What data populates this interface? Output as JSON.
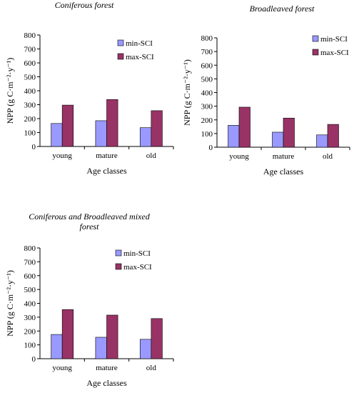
{
  "colors": {
    "min": "#9999ff",
    "max": "#993366",
    "axis": "#000000",
    "text": "#000000"
  },
  "chart_data": [
    {
      "type": "bar",
      "title": "Coniferous forest",
      "title_lines": [
        "Coniferous forest"
      ],
      "categories": [
        "young",
        "mature",
        "old"
      ],
      "series": [
        {
          "name": "min-SCI",
          "values": [
            165,
            185,
            135
          ]
        },
        {
          "name": "max-SCI",
          "values": [
            297,
            337,
            257
          ]
        }
      ],
      "xlabel": "Age classes",
      "ylabel": "NPP (g C·m⁻²·y⁻¹)",
      "ylim": [
        0,
        800
      ],
      "yticks": [
        "0",
        "100",
        "200",
        "300",
        "400",
        "500",
        "600",
        "700",
        "800"
      ],
      "grid": false,
      "legend": "top-right"
    },
    {
      "type": "bar",
      "title": "Broadleaved forest",
      "title_lines": [
        "Broadleaved forest"
      ],
      "categories": [
        "young",
        "mature",
        "old"
      ],
      "series": [
        {
          "name": "min-SCI",
          "values": [
            160,
            110,
            90
          ]
        },
        {
          "name": "max-SCI",
          "values": [
            293,
            213,
            167
          ]
        }
      ],
      "xlabel": "Age classes",
      "ylabel": "NPP (g C·m⁻²·y⁻¹)",
      "ylim": [
        0,
        800
      ],
      "yticks": [
        "0",
        "100",
        "200",
        "300",
        "400",
        "500",
        "600",
        "700",
        "800"
      ],
      "grid": false,
      "legend": "top-right"
    },
    {
      "type": "bar",
      "title": "Coniferous and Broadleaved mixed forest",
      "title_lines": [
        "Coniferous and Broadleaved mixed",
        "forest"
      ],
      "categories": [
        "young",
        "mature",
        "old"
      ],
      "series": [
        {
          "name": "min-SCI",
          "values": [
            175,
            155,
            140
          ]
        },
        {
          "name": "max-SCI",
          "values": [
            355,
            315,
            290
          ]
        }
      ],
      "xlabel": "Age classes",
      "ylabel": "NPP (g C·m⁻²·y⁻¹)",
      "ylim": [
        0,
        800
      ],
      "yticks": [
        "0",
        "100",
        "200",
        "300",
        "400",
        "500",
        "600",
        "700",
        "800"
      ],
      "grid": false,
      "legend": "top-right"
    }
  ]
}
